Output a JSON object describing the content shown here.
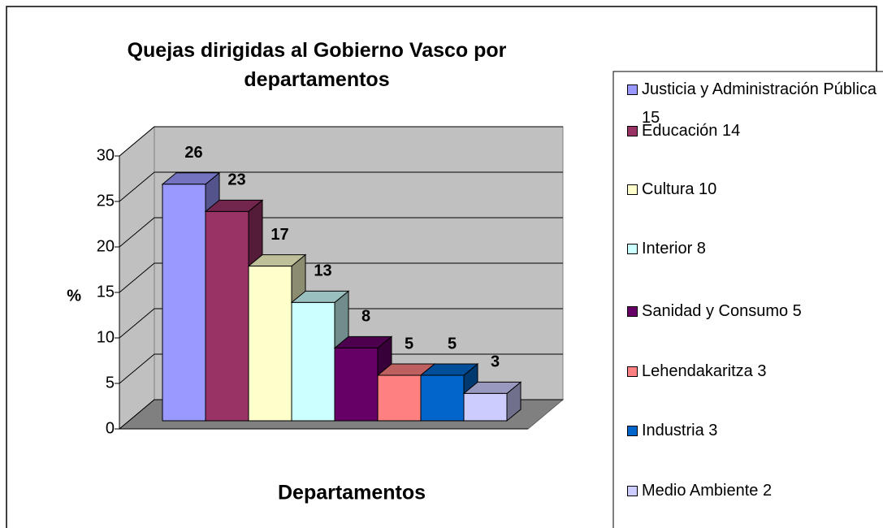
{
  "chart_data": {
    "type": "bar3d",
    "title": "Quejas dirigidas al Gobierno Vasco por departamentos",
    "x_label": "Departamentos",
    "y_label": "%",
    "categories": [
      "Justicia y Administración Pública 15",
      "Educación 14",
      "Cultura 10",
      "Interior 8",
      "Sanidad y Consumo 5",
      "Lehendakaritza 3",
      "Industria 3",
      "Medio Ambiente 2"
    ],
    "values": [
      26,
      23,
      17,
      13,
      8,
      5,
      5,
      3
    ],
    "colors": [
      "#9999FF",
      "#993366",
      "#FFFFCC",
      "#CCFFFF",
      "#660066",
      "#FF8080",
      "#0066CC",
      "#CCCCFF"
    ],
    "ylim": [
      0,
      30
    ],
    "yticks": [
      0,
      5,
      10,
      15,
      20,
      25,
      30
    ],
    "grid": true,
    "legend": "right"
  }
}
